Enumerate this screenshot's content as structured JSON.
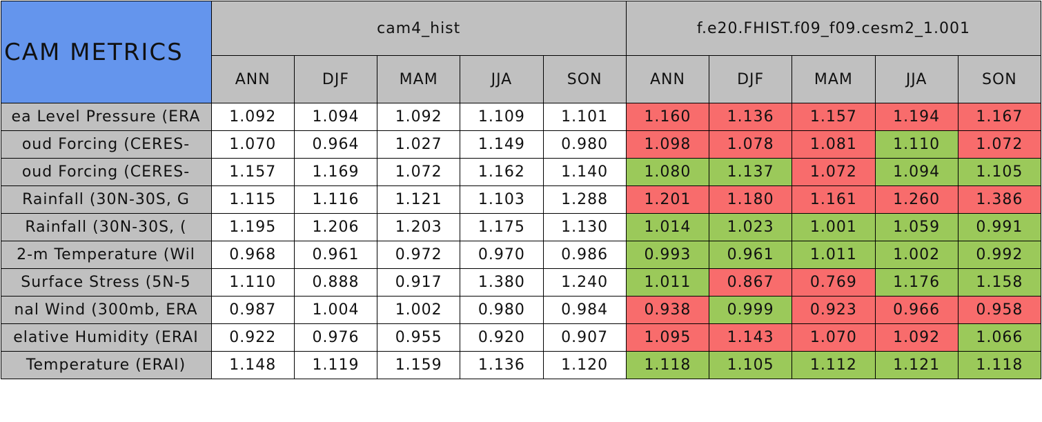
{
  "table": {
    "title": "CAM METRICS",
    "groups": [
      "cam4_hist",
      "f.e20.FHIST.f09_f09.cesm2_1.001"
    ],
    "seasons": [
      "ANN",
      "DJF",
      "MAM",
      "JJA",
      "SON"
    ],
    "header_color": "#c0c0c0",
    "title_color": "#6495ed",
    "rows": [
      {
        "label": "ea Level Pressure (ERA",
        "values": [
          "1.092",
          "1.094",
          "1.092",
          "1.109",
          "1.101",
          "1.160",
          "1.136",
          "1.157",
          "1.194",
          "1.167"
        ],
        "colors": [
          "#ffffff",
          "#ffffff",
          "#ffffff",
          "#ffffff",
          "#ffffff",
          "#f86c6c",
          "#f86c6c",
          "#f86c6c",
          "#f86c6c",
          "#f86c6c"
        ]
      },
      {
        "label": "oud Forcing (CERES-",
        "values": [
          "1.070",
          "0.964",
          "1.027",
          "1.149",
          "0.980",
          "1.098",
          "1.078",
          "1.081",
          "1.110",
          "1.072"
        ],
        "colors": [
          "#ffffff",
          "#ffffff",
          "#ffffff",
          "#ffffff",
          "#ffffff",
          "#f86c6c",
          "#f86c6c",
          "#f86c6c",
          "#9bc95a",
          "#f86c6c"
        ]
      },
      {
        "label": "oud Forcing (CERES-",
        "values": [
          "1.157",
          "1.169",
          "1.072",
          "1.162",
          "1.140",
          "1.080",
          "1.137",
          "1.072",
          "1.094",
          "1.105"
        ],
        "colors": [
          "#ffffff",
          "#ffffff",
          "#ffffff",
          "#ffffff",
          "#ffffff",
          "#9bc95a",
          "#9bc95a",
          "#f86c6c",
          "#9bc95a",
          "#9bc95a"
        ]
      },
      {
        "label": "Rainfall (30N-30S, G",
        "values": [
          "1.115",
          "1.116",
          "1.121",
          "1.103",
          "1.288",
          "1.201",
          "1.180",
          "1.161",
          "1.260",
          "1.386"
        ],
        "colors": [
          "#ffffff",
          "#ffffff",
          "#ffffff",
          "#ffffff",
          "#ffffff",
          "#f86c6c",
          "#f86c6c",
          "#f86c6c",
          "#f86c6c",
          "#f86c6c"
        ]
      },
      {
        "label": "Rainfall (30N-30S, (",
        "values": [
          "1.195",
          "1.206",
          "1.203",
          "1.175",
          "1.130",
          "1.014",
          "1.023",
          "1.001",
          "1.059",
          "0.991"
        ],
        "colors": [
          "#ffffff",
          "#ffffff",
          "#ffffff",
          "#ffffff",
          "#ffffff",
          "#9bc95a",
          "#9bc95a",
          "#9bc95a",
          "#9bc95a",
          "#9bc95a"
        ]
      },
      {
        "label": "2-m Temperature (Wil",
        "values": [
          "0.968",
          "0.961",
          "0.972",
          "0.970",
          "0.986",
          "0.993",
          "0.961",
          "1.011",
          "1.002",
          "0.992"
        ],
        "colors": [
          "#ffffff",
          "#ffffff",
          "#ffffff",
          "#ffffff",
          "#ffffff",
          "#9bc95a",
          "#9bc95a",
          "#9bc95a",
          "#9bc95a",
          "#9bc95a"
        ]
      },
      {
        "label": "Surface Stress (5N-5",
        "values": [
          "1.110",
          "0.888",
          "0.917",
          "1.380",
          "1.240",
          "1.011",
          "0.867",
          "0.769",
          "1.176",
          "1.158"
        ],
        "colors": [
          "#ffffff",
          "#ffffff",
          "#ffffff",
          "#ffffff",
          "#ffffff",
          "#9bc95a",
          "#f86c6c",
          "#f86c6c",
          "#9bc95a",
          "#9bc95a"
        ]
      },
      {
        "label": "nal Wind (300mb, ERA",
        "values": [
          "0.987",
          "1.004",
          "1.002",
          "0.980",
          "0.984",
          "0.938",
          "0.999",
          "0.923",
          "0.966",
          "0.958"
        ],
        "colors": [
          "#ffffff",
          "#ffffff",
          "#ffffff",
          "#ffffff",
          "#ffffff",
          "#f86c6c",
          "#9bc95a",
          "#f86c6c",
          "#f86c6c",
          "#f86c6c"
        ]
      },
      {
        "label": "elative Humidity (ERAI",
        "values": [
          "0.922",
          "0.976",
          "0.955",
          "0.920",
          "0.907",
          "1.095",
          "1.143",
          "1.070",
          "1.092",
          "1.066"
        ],
        "colors": [
          "#ffffff",
          "#ffffff",
          "#ffffff",
          "#ffffff",
          "#ffffff",
          "#f86c6c",
          "#f86c6c",
          "#f86c6c",
          "#f86c6c",
          "#9bc95a"
        ]
      },
      {
        "label": "Temperature (ERAI)",
        "values": [
          "1.148",
          "1.119",
          "1.159",
          "1.136",
          "1.120",
          "1.118",
          "1.105",
          "1.112",
          "1.121",
          "1.118"
        ],
        "colors": [
          "#ffffff",
          "#ffffff",
          "#ffffff",
          "#ffffff",
          "#ffffff",
          "#9bc95a",
          "#9bc95a",
          "#9bc95a",
          "#9bc95a",
          "#9bc95a"
        ]
      }
    ]
  }
}
